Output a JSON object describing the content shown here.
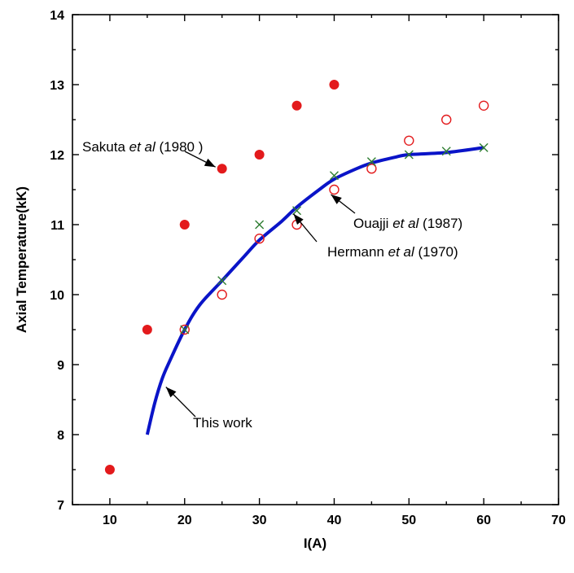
{
  "chart_data": {
    "type": "scatter",
    "title": "",
    "xlabel": "I(A)",
    "ylabel": "Axial Temperature(kK)",
    "xlim": [
      5,
      70
    ],
    "ylim": [
      7,
      14
    ],
    "xticks": [
      "10",
      "20",
      "30",
      "40",
      "50",
      "60",
      "70"
    ],
    "yticks": [
      "7",
      "8",
      "9",
      "10",
      "11",
      "12",
      "13",
      "14"
    ],
    "grid": false,
    "colors": {
      "sakuta": "#e31a1c",
      "ouajji": "#e31a1c",
      "hermann": "#2e7d32",
      "this_work": "#0a14c8"
    },
    "series": [
      {
        "key": "sakuta",
        "marker": "filled-circle",
        "x": [
          10,
          15,
          20,
          25,
          30,
          35,
          40
        ],
        "y": [
          7.5,
          9.5,
          11.0,
          11.8,
          12.0,
          12.7,
          13.0
        ]
      },
      {
        "key": "ouajji",
        "marker": "open-circle",
        "x": [
          20,
          25,
          30,
          35,
          40,
          45,
          50,
          55,
          60
        ],
        "y": [
          9.5,
          10.0,
          10.8,
          11.0,
          11.5,
          11.8,
          12.2,
          12.5,
          12.7
        ]
      },
      {
        "key": "hermann",
        "marker": "cross",
        "x": [
          20,
          25,
          30,
          35,
          40,
          45,
          50,
          55,
          60
        ],
        "y": [
          9.5,
          10.2,
          11.0,
          11.2,
          11.7,
          11.9,
          12.0,
          12.05,
          12.1
        ]
      },
      {
        "key": "this_work",
        "marker": "line",
        "x": [
          15,
          16,
          17,
          18,
          20,
          22,
          25,
          28,
          30,
          33,
          35,
          38,
          40,
          43,
          45,
          48,
          50,
          55,
          60
        ],
        "y": [
          8.0,
          8.45,
          8.8,
          9.05,
          9.5,
          9.85,
          10.2,
          10.55,
          10.78,
          11.05,
          11.25,
          11.5,
          11.65,
          11.8,
          11.88,
          11.96,
          12.0,
          12.03,
          12.1
        ]
      }
    ],
    "annotations": [
      {
        "key": "sakuta",
        "text": "Sakuta ",
        "italic": "et al",
        "tail": " (1980 )",
        "point": [
          25,
          11.8
        ]
      },
      {
        "key": "ouajji",
        "text": "Ouajji ",
        "italic": "et al",
        "tail": " (1987)",
        "point": [
          40,
          11.5
        ]
      },
      {
        "key": "hermann",
        "text": "Hermann  ",
        "italic": "et al",
        "tail": " (1970)",
        "point": [
          35,
          11.2
        ]
      },
      {
        "key": "this_work",
        "text": "This work",
        "italic": "",
        "tail": "",
        "point": [
          17.5,
          8.75
        ]
      }
    ]
  }
}
